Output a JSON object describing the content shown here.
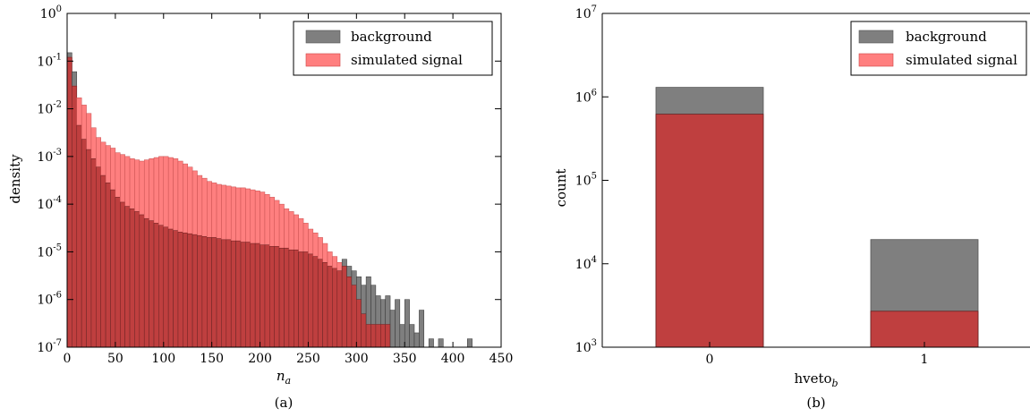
{
  "colors": {
    "background": "#7f7f7f",
    "simulated_signal": "#ff7f7f",
    "overlap": "#bf3f3f"
  },
  "chart_data": [
    {
      "type": "bar",
      "panel": "(a)",
      "xlabel_base": "n",
      "xlabel_sub": "a",
      "ylabel": "density",
      "xlim": [
        0,
        450
      ],
      "ylim": [
        1e-07,
        1
      ],
      "yscale": "log",
      "xticks": [
        "0",
        "50",
        "100",
        "150",
        "200",
        "250",
        "300",
        "350",
        "400",
        "450"
      ],
      "yticks": [
        {
          "base": "10",
          "exp": "0"
        },
        {
          "base": "10",
          "exp": "-1"
        },
        {
          "base": "10",
          "exp": "-2"
        },
        {
          "base": "10",
          "exp": "-3"
        },
        {
          "base": "10",
          "exp": "-4"
        },
        {
          "base": "10",
          "exp": "-5"
        },
        {
          "base": "10",
          "exp": "-6"
        },
        {
          "base": "10",
          "exp": "-7"
        }
      ],
      "legend": {
        "position": "top-right",
        "entries": [
          "background",
          "simulated signal"
        ]
      },
      "bin_width": 5,
      "bin_starts": [
        0,
        5,
        10,
        15,
        20,
        25,
        30,
        35,
        40,
        45,
        50,
        55,
        60,
        65,
        70,
        75,
        80,
        85,
        90,
        95,
        100,
        105,
        110,
        115,
        120,
        125,
        130,
        135,
        140,
        145,
        150,
        155,
        160,
        165,
        170,
        175,
        180,
        185,
        190,
        195,
        200,
        205,
        210,
        215,
        220,
        225,
        230,
        235,
        240,
        245,
        250,
        255,
        260,
        265,
        270,
        275,
        280,
        285,
        290,
        295,
        300,
        305,
        310,
        315,
        320,
        325,
        330,
        335,
        340,
        345,
        350,
        355,
        360,
        365,
        370,
        375,
        380,
        385,
        390,
        395,
        400,
        405,
        410,
        415
      ],
      "series": [
        {
          "name": "background",
          "values": [
            0.15,
            0.06,
            0.0045,
            0.0023,
            0.0014,
            0.0009,
            0.0006,
            0.0004,
            0.00028,
            0.0002,
            0.00014,
            0.00011,
            9e-05,
            8e-05,
            7e-05,
            6e-05,
            5e-05,
            4.5e-05,
            4e-05,
            3.6e-05,
            3.3e-05,
            3e-05,
            2.8e-05,
            2.6e-05,
            2.5e-05,
            2.4e-05,
            2.3e-05,
            2.2e-05,
            2.1e-05,
            2e-05,
            2e-05,
            1.9e-05,
            1.8e-05,
            1.8e-05,
            1.7e-05,
            1.7e-05,
            1.6e-05,
            1.6e-05,
            1.5e-05,
            1.5e-05,
            1.4e-05,
            1.4e-05,
            1.3e-05,
            1.3e-05,
            1.2e-05,
            1.2e-05,
            1.1e-05,
            1.1e-05,
            1e-05,
            1e-05,
            9e-06,
            8e-06,
            7e-06,
            6e-06,
            5e-06,
            4.5e-06,
            4e-06,
            7e-06,
            5e-06,
            4e-06,
            3e-06,
            2e-06,
            3e-06,
            2e-06,
            1.2e-06,
            1e-06,
            1.2e-06,
            6e-07,
            1e-06,
            3e-07,
            1e-06,
            3e-07,
            2e-07,
            6e-07,
            0,
            1.5e-07,
            0,
            1.5e-07,
            0,
            0,
            0,
            0,
            0,
            1.5e-07
          ]
        },
        {
          "name": "simulated signal",
          "values": [
            0.12,
            0.03,
            0.017,
            0.012,
            0.008,
            0.004,
            0.0025,
            0.002,
            0.0017,
            0.0015,
            0.0012,
            0.0011,
            0.001,
            0.0009,
            0.00085,
            0.0008,
            0.00085,
            0.0009,
            0.00095,
            0.001,
            0.001,
            0.00095,
            0.0009,
            0.0008,
            0.0007,
            0.0006,
            0.0005,
            0.0004,
            0.00035,
            0.0003,
            0.00028,
            0.00026,
            0.00025,
            0.00024,
            0.00023,
            0.00022,
            0.00022,
            0.00021,
            0.0002,
            0.00019,
            0.00018,
            0.00016,
            0.00014,
            0.00012,
            0.0001,
            8e-05,
            7e-05,
            6e-05,
            5e-05,
            4e-05,
            3e-05,
            2.5e-05,
            2e-05,
            1.5e-05,
            1e-05,
            8e-06,
            6e-06,
            5e-06,
            3e-06,
            2e-06,
            1e-06,
            5e-07,
            3e-07,
            3e-07,
            3e-07,
            3e-07,
            3e-07,
            0,
            0,
            0,
            0,
            0,
            0,
            0,
            0,
            0,
            0,
            0,
            0,
            0,
            0,
            0,
            0,
            0
          ]
        }
      ]
    },
    {
      "type": "bar",
      "panel": "(b)",
      "xlabel_base": "hveto",
      "xlabel_sub": "b",
      "ylabel": "count",
      "yscale": "log",
      "ylim": [
        1000,
        10000000
      ],
      "categories": [
        "0",
        "1"
      ],
      "yticks": [
        {
          "base": "10",
          "exp": "7"
        },
        {
          "base": "10",
          "exp": "6"
        },
        {
          "base": "10",
          "exp": "5"
        },
        {
          "base": "10",
          "exp": "4"
        },
        {
          "base": "10",
          "exp": "3"
        }
      ],
      "legend": {
        "position": "top-right",
        "entries": [
          "background",
          "simulated signal"
        ]
      },
      "series": [
        {
          "name": "background",
          "values": [
            1300000,
            19500
          ]
        },
        {
          "name": "simulated signal",
          "values": [
            620000,
            2700
          ]
        }
      ]
    }
  ]
}
